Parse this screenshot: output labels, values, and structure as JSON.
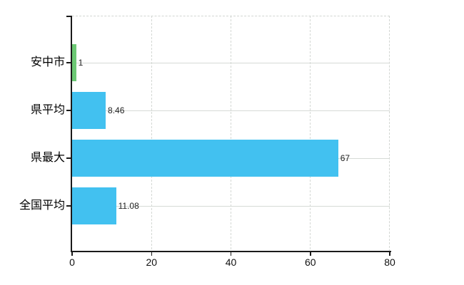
{
  "chart_data": {
    "type": "bar",
    "orientation": "horizontal",
    "title": "",
    "xlabel": "",
    "ylabel": "",
    "categories": [
      "安中市",
      "県平均",
      "県最大",
      "全国平均"
    ],
    "values": [
      1,
      8.46,
      67,
      11.08
    ],
    "value_labels": [
      "1",
      "8.46",
      "67",
      "11.08"
    ],
    "bar_colors": [
      "#6cc874",
      "#42c1f0",
      "#42c1f0",
      "#42c1f0"
    ],
    "xlim": [
      0,
      80
    ],
    "x_ticks": [
      "0",
      "20",
      "40",
      "60",
      "80"
    ],
    "grid": true,
    "legend": false
  },
  "colors": {
    "bar_blue": "#42c1f0",
    "bar_green": "#6cc874",
    "gridline": "#d6dad6",
    "axis": "#1a1a1a",
    "tick_text": "#111111",
    "value_text": "#222222",
    "background": "#ffffff"
  }
}
